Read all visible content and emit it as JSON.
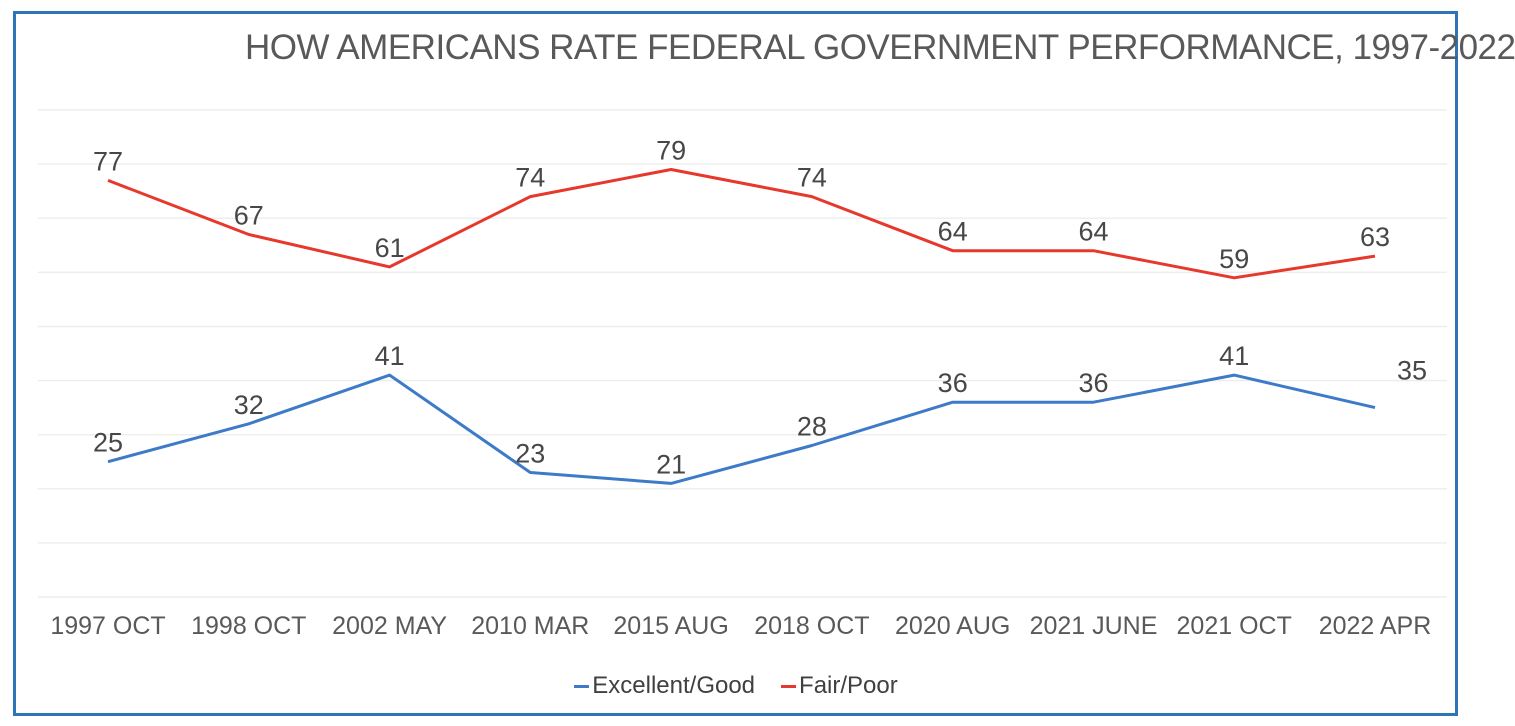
{
  "chart_data": {
    "type": "line",
    "title": "HOW AMERICANS RATE FEDERAL GOVERNMENT PERFORMANCE, 1997-2022",
    "categories": [
      "1997 OCT",
      "1998 OCT",
      "2002 MAY",
      "2010 MAR",
      "2015 AUG",
      "2018 OCT",
      "2020 AUG",
      "2021 JUNE",
      "2021 OCT",
      "2022 APR"
    ],
    "series": [
      {
        "name": "Excellent/Good",
        "color": "#3D7BC8",
        "values": [
          25,
          32,
          41,
          23,
          21,
          28,
          36,
          36,
          41,
          35
        ]
      },
      {
        "name": "Fair/Poor",
        "color": "#E6382C",
        "values": [
          77,
          67,
          61,
          74,
          79,
          74,
          64,
          64,
          59,
          63
        ]
      }
    ],
    "xlabel": "",
    "ylabel": "",
    "ylim": [
      0,
      90
    ],
    "gridline_step": 10,
    "grid": true,
    "data_labels": true,
    "legend_position": "bottom"
  },
  "colors": {
    "frame_border": "#2E75B6",
    "gridline": "#EDEDED",
    "title_text": "#595959",
    "axis_text": "#595959",
    "data_label_text": "#474747",
    "legend_text": "#404040"
  }
}
